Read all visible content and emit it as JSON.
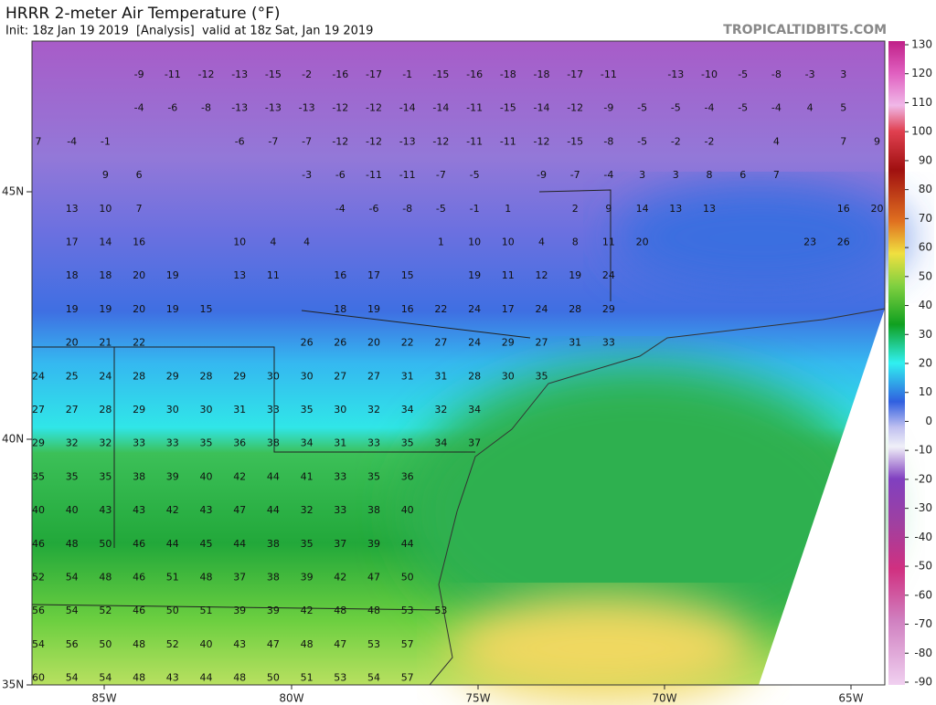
{
  "header": {
    "title": "HRRR 2-meter Air Temperature (°F)",
    "subtitle": "Init: 18z Jan 19 2019  [Analysis]  valid at 18z Sat, Jan 19 2019",
    "site": "TROPICALTIDBITS.COM"
  },
  "map": {
    "lat_labels": [
      "45N",
      "40N",
      "35N"
    ],
    "lon_labels": [
      "85W",
      "80W",
      "75W",
      "70W",
      "65W"
    ],
    "rows": [
      [
        null,
        null,
        null,
        -9,
        -11,
        -12,
        -13,
        -15,
        -2,
        -16,
        -17,
        -1,
        -15,
        -16,
        -18,
        -18,
        -17,
        -11,
        null,
        -13,
        -10,
        -5,
        -8,
        -3,
        3
      ],
      [
        null,
        null,
        null,
        -4,
        -6,
        -8,
        -13,
        -13,
        -13,
        -12,
        -12,
        -14,
        -14,
        -11,
        -15,
        -14,
        -12,
        -9,
        -5,
        -5,
        -4,
        -5,
        -4,
        4,
        5
      ],
      [
        7,
        -4,
        -1,
        null,
        null,
        null,
        -6,
        -7,
        -7,
        -12,
        -12,
        -13,
        -12,
        -11,
        -11,
        -12,
        -15,
        -8,
        -5,
        -2,
        -2,
        null,
        4,
        null,
        7,
        9
      ],
      [
        null,
        null,
        9,
        6,
        null,
        null,
        null,
        null,
        -3,
        -6,
        -11,
        -11,
        -7,
        -5,
        null,
        -9,
        -7,
        -4,
        3,
        3,
        8,
        6,
        7
      ],
      [
        null,
        13,
        10,
        7,
        null,
        null,
        null,
        null,
        null,
        -4,
        -6,
        -8,
        -5,
        -1,
        1,
        null,
        2,
        9,
        14,
        13,
        13,
        null,
        null,
        null,
        16,
        20
      ],
      [
        null,
        17,
        14,
        16,
        null,
        null,
        10,
        4,
        4,
        null,
        null,
        null,
        1,
        10,
        10,
        4,
        8,
        11,
        20,
        null,
        null,
        null,
        null,
        23,
        26
      ],
      [
        null,
        18,
        18,
        20,
        19,
        null,
        13,
        11,
        null,
        16,
        17,
        15,
        null,
        19,
        11,
        12,
        19,
        24
      ],
      [
        null,
        19,
        19,
        20,
        19,
        15,
        null,
        null,
        null,
        18,
        19,
        16,
        22,
        24,
        17,
        24,
        28,
        29
      ],
      [
        null,
        20,
        21,
        22,
        null,
        null,
        null,
        null,
        26,
        26,
        20,
        22,
        27,
        24,
        29,
        27,
        31,
        33
      ],
      [
        24,
        25,
        24,
        28,
        29,
        28,
        29,
        30,
        30,
        27,
        27,
        31,
        31,
        28,
        30,
        35
      ],
      [
        27,
        27,
        28,
        29,
        30,
        30,
        31,
        33,
        35,
        30,
        32,
        34,
        32,
        34
      ],
      [
        29,
        32,
        32,
        33,
        33,
        35,
        36,
        38,
        34,
        31,
        33,
        35,
        34,
        37
      ],
      [
        35,
        35,
        35,
        38,
        39,
        40,
        42,
        44,
        41,
        33,
        35,
        36
      ],
      [
        40,
        40,
        43,
        43,
        42,
        43,
        47,
        44,
        32,
        33,
        38,
        40
      ],
      [
        46,
        48,
        50,
        46,
        44,
        45,
        44,
        38,
        35,
        37,
        39,
        44
      ],
      [
        52,
        54,
        48,
        46,
        51,
        48,
        37,
        38,
        39,
        42,
        47,
        50
      ],
      [
        56,
        54,
        52,
        46,
        50,
        51,
        39,
        39,
        42,
        48,
        48,
        53,
        53
      ],
      [
        54,
        56,
        50,
        48,
        52,
        40,
        43,
        47,
        48,
        47,
        53,
        57
      ],
      [
        60,
        54,
        54,
        48,
        43,
        44,
        48,
        50,
        51,
        53,
        54,
        57
      ]
    ]
  },
  "colorbar": {
    "ticks": [
      130,
      120,
      110,
      100,
      90,
      80,
      70,
      60,
      50,
      40,
      30,
      20,
      10,
      0,
      -10,
      -20,
      -30,
      -40,
      -50,
      -60,
      -70,
      -80,
      -90
    ]
  }
}
